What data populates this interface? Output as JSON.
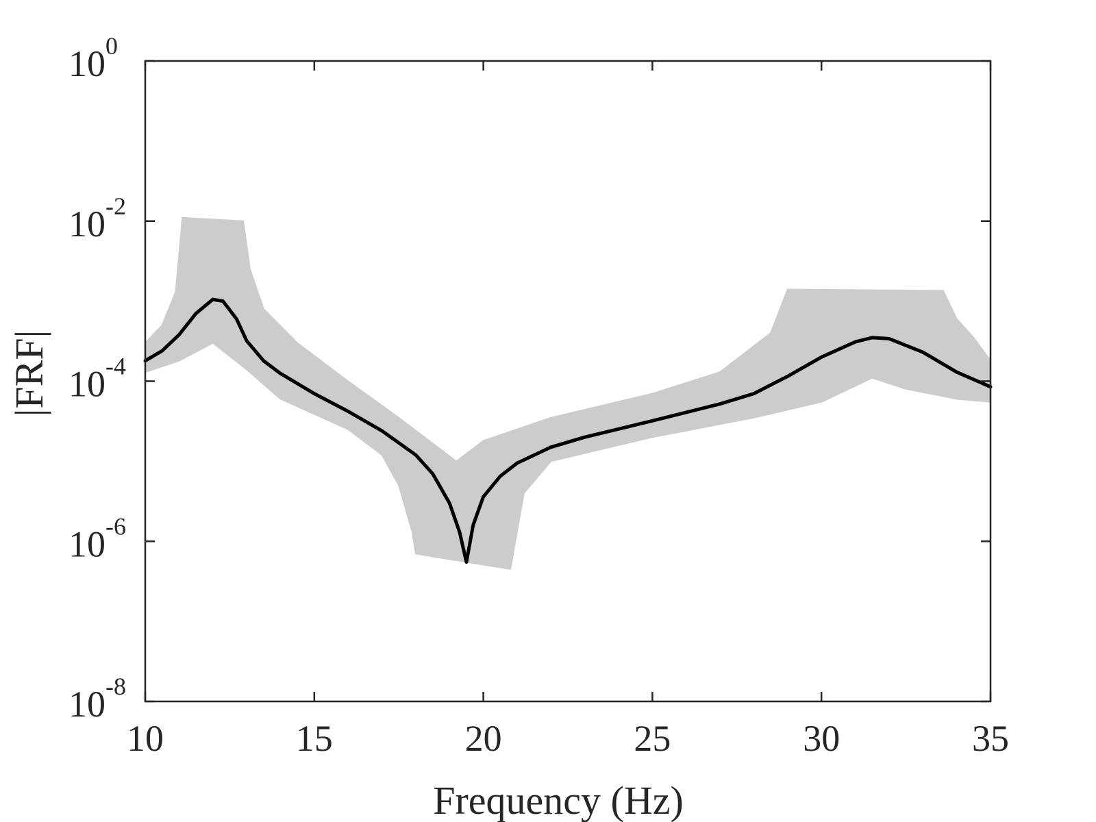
{
  "chart_data": {
    "type": "line",
    "xlabel": "Frequency (Hz)",
    "ylabel": "|FRF|",
    "xlim": [
      10,
      35
    ],
    "ylim": [
      1e-08,
      1
    ],
    "yscale": "log",
    "grid": false,
    "legend": "none",
    "x_ticks": [
      {
        "value": 10,
        "label": "10"
      },
      {
        "value": 15,
        "label": "15"
      },
      {
        "value": 20,
        "label": "20"
      },
      {
        "value": 25,
        "label": "25"
      },
      {
        "value": 30,
        "label": "30"
      },
      {
        "value": 35,
        "label": "35"
      }
    ],
    "y_ticks": [
      {
        "value": 1e-08,
        "base": "10",
        "exp": "-8"
      },
      {
        "value": 1e-06,
        "base": "10",
        "exp": "-6"
      },
      {
        "value": 0.0001,
        "base": "10",
        "exp": "-4"
      },
      {
        "value": 0.01,
        "base": "10",
        "exp": "-2"
      },
      {
        "value": 1,
        "base": "10",
        "exp": "0"
      }
    ],
    "band": {
      "color": "#cccccc",
      "description_values": "envelope of many sample FRF curves",
      "upper": [
        {
          "x": 10,
          "y": 0.0003
        },
        {
          "x": 10.5,
          "y": 0.0005
        },
        {
          "x": 10.9,
          "y": 0.0013
        },
        {
          "x": 11.1,
          "y": 0.011
        },
        {
          "x": 12.9,
          "y": 0.01
        },
        {
          "x": 13.1,
          "y": 0.0025
        },
        {
          "x": 13.5,
          "y": 0.0008
        },
        {
          "x": 14.5,
          "y": 0.0003
        },
        {
          "x": 16,
          "y": 0.0001
        },
        {
          "x": 17.5,
          "y": 3.5e-05
        },
        {
          "x": 19.2,
          "y": 1e-05
        },
        {
          "x": 20,
          "y": 1.8e-05
        },
        {
          "x": 22,
          "y": 3.5e-05
        },
        {
          "x": 25,
          "y": 7e-05
        },
        {
          "x": 27,
          "y": 0.00013
        },
        {
          "x": 28.5,
          "y": 0.0004
        },
        {
          "x": 29,
          "y": 0.0014
        },
        {
          "x": 33.6,
          "y": 0.00135
        },
        {
          "x": 34,
          "y": 0.0006
        },
        {
          "x": 34.5,
          "y": 0.00035
        },
        {
          "x": 35,
          "y": 0.00018
        }
      ],
      "lower": [
        {
          "x": 10,
          "y": 0.00013
        },
        {
          "x": 11,
          "y": 0.00018
        },
        {
          "x": 12,
          "y": 0.0003
        },
        {
          "x": 13,
          "y": 0.00014
        },
        {
          "x": 14,
          "y": 6e-05
        },
        {
          "x": 16,
          "y": 2.5e-05
        },
        {
          "x": 17,
          "y": 1.2e-05
        },
        {
          "x": 17.5,
          "y": 5e-06
        },
        {
          "x": 17.9,
          "y": 1.3e-06
        },
        {
          "x": 18,
          "y": 7e-07
        },
        {
          "x": 20.8,
          "y": 4.5e-07
        },
        {
          "x": 21.2,
          "y": 4e-06
        },
        {
          "x": 22,
          "y": 1e-05
        },
        {
          "x": 25,
          "y": 2e-05
        },
        {
          "x": 28,
          "y": 3.5e-05
        },
        {
          "x": 30,
          "y": 5.5e-05
        },
        {
          "x": 31.5,
          "y": 0.00011
        },
        {
          "x": 32.5,
          "y": 8e-05
        },
        {
          "x": 34,
          "y": 6e-05
        },
        {
          "x": 35,
          "y": 5.5e-05
        }
      ]
    },
    "series": [
      {
        "color": "#000000",
        "points": [
          {
            "x": 10,
            "y": 0.00018
          },
          {
            "x": 10.5,
            "y": 0.00024
          },
          {
            "x": 11,
            "y": 0.00038
          },
          {
            "x": 11.5,
            "y": 0.0007
          },
          {
            "x": 12,
            "y": 0.00105
          },
          {
            "x": 12.3,
            "y": 0.001
          },
          {
            "x": 12.7,
            "y": 0.0006
          },
          {
            "x": 13,
            "y": 0.00032
          },
          {
            "x": 13.5,
            "y": 0.00018
          },
          {
            "x": 14,
            "y": 0.000125
          },
          {
            "x": 15,
            "y": 7e-05
          },
          {
            "x": 16,
            "y": 4.2e-05
          },
          {
            "x": 17,
            "y": 2.4e-05
          },
          {
            "x": 18,
            "y": 1.2e-05
          },
          {
            "x": 18.5,
            "y": 7e-06
          },
          {
            "x": 19,
            "y": 3e-06
          },
          {
            "x": 19.3,
            "y": 1.3e-06
          },
          {
            "x": 19.5,
            "y": 5.5e-07
          },
          {
            "x": 19.7,
            "y": 1.6e-06
          },
          {
            "x": 20,
            "y": 3.6e-06
          },
          {
            "x": 20.5,
            "y": 6.5e-06
          },
          {
            "x": 21,
            "y": 9.5e-06
          },
          {
            "x": 22,
            "y": 1.5e-05
          },
          {
            "x": 23,
            "y": 2e-05
          },
          {
            "x": 25,
            "y": 3.2e-05
          },
          {
            "x": 27,
            "y": 5.2e-05
          },
          {
            "x": 28,
            "y": 7e-05
          },
          {
            "x": 29,
            "y": 0.000115
          },
          {
            "x": 30,
            "y": 0.0002
          },
          {
            "x": 31,
            "y": 0.00031
          },
          {
            "x": 31.5,
            "y": 0.00035
          },
          {
            "x": 32,
            "y": 0.00034
          },
          {
            "x": 33,
            "y": 0.00023
          },
          {
            "x": 34,
            "y": 0.00013
          },
          {
            "x": 35,
            "y": 8.5e-05
          }
        ]
      }
    ]
  }
}
